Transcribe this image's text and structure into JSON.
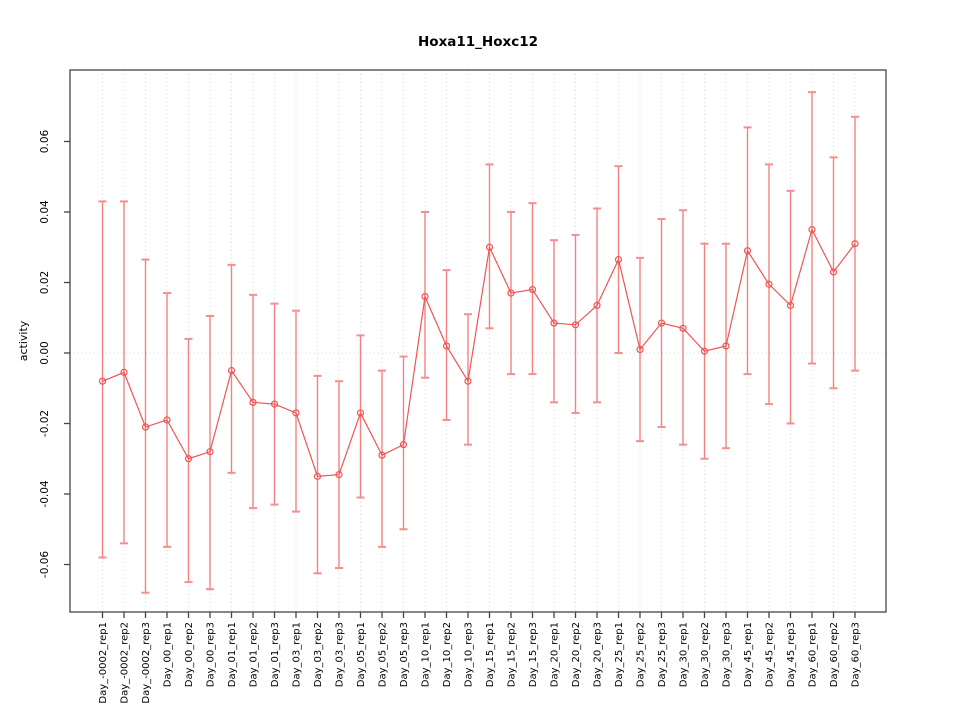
{
  "title": "Hoxa11_Hoxc12",
  "y_axis": {
    "label": "activity",
    "tick_labels": [
      "-0.06",
      "-0.04",
      "-0.02",
      "0.00",
      "0.02",
      "0.04",
      "0.06"
    ]
  },
  "chart_data": {
    "type": "line",
    "title": "Hoxa11_Hoxc12",
    "xlabel": "",
    "ylabel": "activity",
    "ylim": [
      -0.073,
      0.08
    ],
    "y_ticks": [
      -0.06,
      -0.04,
      -0.02,
      0.0,
      0.02,
      0.04,
      0.06
    ],
    "grid": "vertical dotted gridline at every category; dotted horizontal line at y=0 only",
    "legend_position": "none",
    "marker": "open-circle",
    "error_bars": true,
    "categories": [
      "Day_-0002_rep1",
      "Day_-0002_rep2",
      "Day_-0002_rep3",
      "Day_00_rep1",
      "Day_00_rep2",
      "Day_00_rep3",
      "Day_01_rep1",
      "Day_01_rep2",
      "Day_01_rep3",
      "Day_03_rep1",
      "Day_03_rep2",
      "Day_03_rep3",
      "Day_05_rep1",
      "Day_05_rep2",
      "Day_05_rep3",
      "Day_10_rep1",
      "Day_10_rep2",
      "Day_10_rep3",
      "Day_15_rep1",
      "Day_15_rep2",
      "Day_15_rep3",
      "Day_20_rep1",
      "Day_20_rep2",
      "Day_20_rep3",
      "Day_25_rep1",
      "Day_25_rep2",
      "Day_25_rep3",
      "Day_30_rep1",
      "Day_30_rep2",
      "Day_30_rep3",
      "Day_45_rep1",
      "Day_45_rep2",
      "Day_45_rep3",
      "Day_60_rep1",
      "Day_60_rep2",
      "Day_60_rep3"
    ],
    "series": [
      {
        "name": "activity",
        "values": [
          -0.008,
          -0.0055,
          -0.021,
          -0.019,
          -0.03,
          -0.028,
          -0.005,
          -0.014,
          -0.0145,
          -0.017,
          -0.035,
          -0.0345,
          -0.017,
          -0.029,
          -0.026,
          0.016,
          0.002,
          -0.008,
          0.03,
          0.017,
          0.018,
          0.0085,
          0.008,
          0.0135,
          0.0265,
          0.001,
          0.0085,
          0.007,
          0.0005,
          0.002,
          0.029,
          0.0195,
          0.0135,
          0.035,
          0.023,
          0.031
        ],
        "error_upper": [
          0.043,
          0.043,
          0.0265,
          0.017,
          0.004,
          0.0105,
          0.025,
          0.0165,
          0.014,
          0.012,
          -0.0065,
          -0.008,
          0.005,
          -0.005,
          -0.001,
          0.04,
          0.0235,
          0.011,
          0.0535,
          0.04,
          0.0425,
          0.032,
          0.0335,
          0.041,
          0.053,
          0.027,
          0.038,
          0.0405,
          0.031,
          0.031,
          0.064,
          0.0535,
          0.046,
          0.074,
          0.0555,
          0.067
        ],
        "error_lower": [
          -0.058,
          -0.054,
          -0.068,
          -0.055,
          -0.065,
          -0.067,
          -0.034,
          -0.044,
          -0.043,
          -0.045,
          -0.0625,
          -0.061,
          -0.041,
          -0.055,
          -0.05,
          -0.007,
          -0.019,
          -0.026,
          0.007,
          -0.006,
          -0.006,
          -0.014,
          -0.017,
          -0.014,
          0.0,
          -0.025,
          -0.021,
          -0.026,
          -0.03,
          -0.027,
          -0.006,
          -0.0145,
          -0.02,
          -0.003,
          -0.01,
          -0.005
        ]
      }
    ],
    "colors": {
      "line": "#ee5555",
      "marker": "#ee5555",
      "error_bar": "#f58080",
      "error_cap": "#f58e8e",
      "grid": "#d8d8d8",
      "axis_box": "#444444",
      "text": "#000000"
    }
  }
}
